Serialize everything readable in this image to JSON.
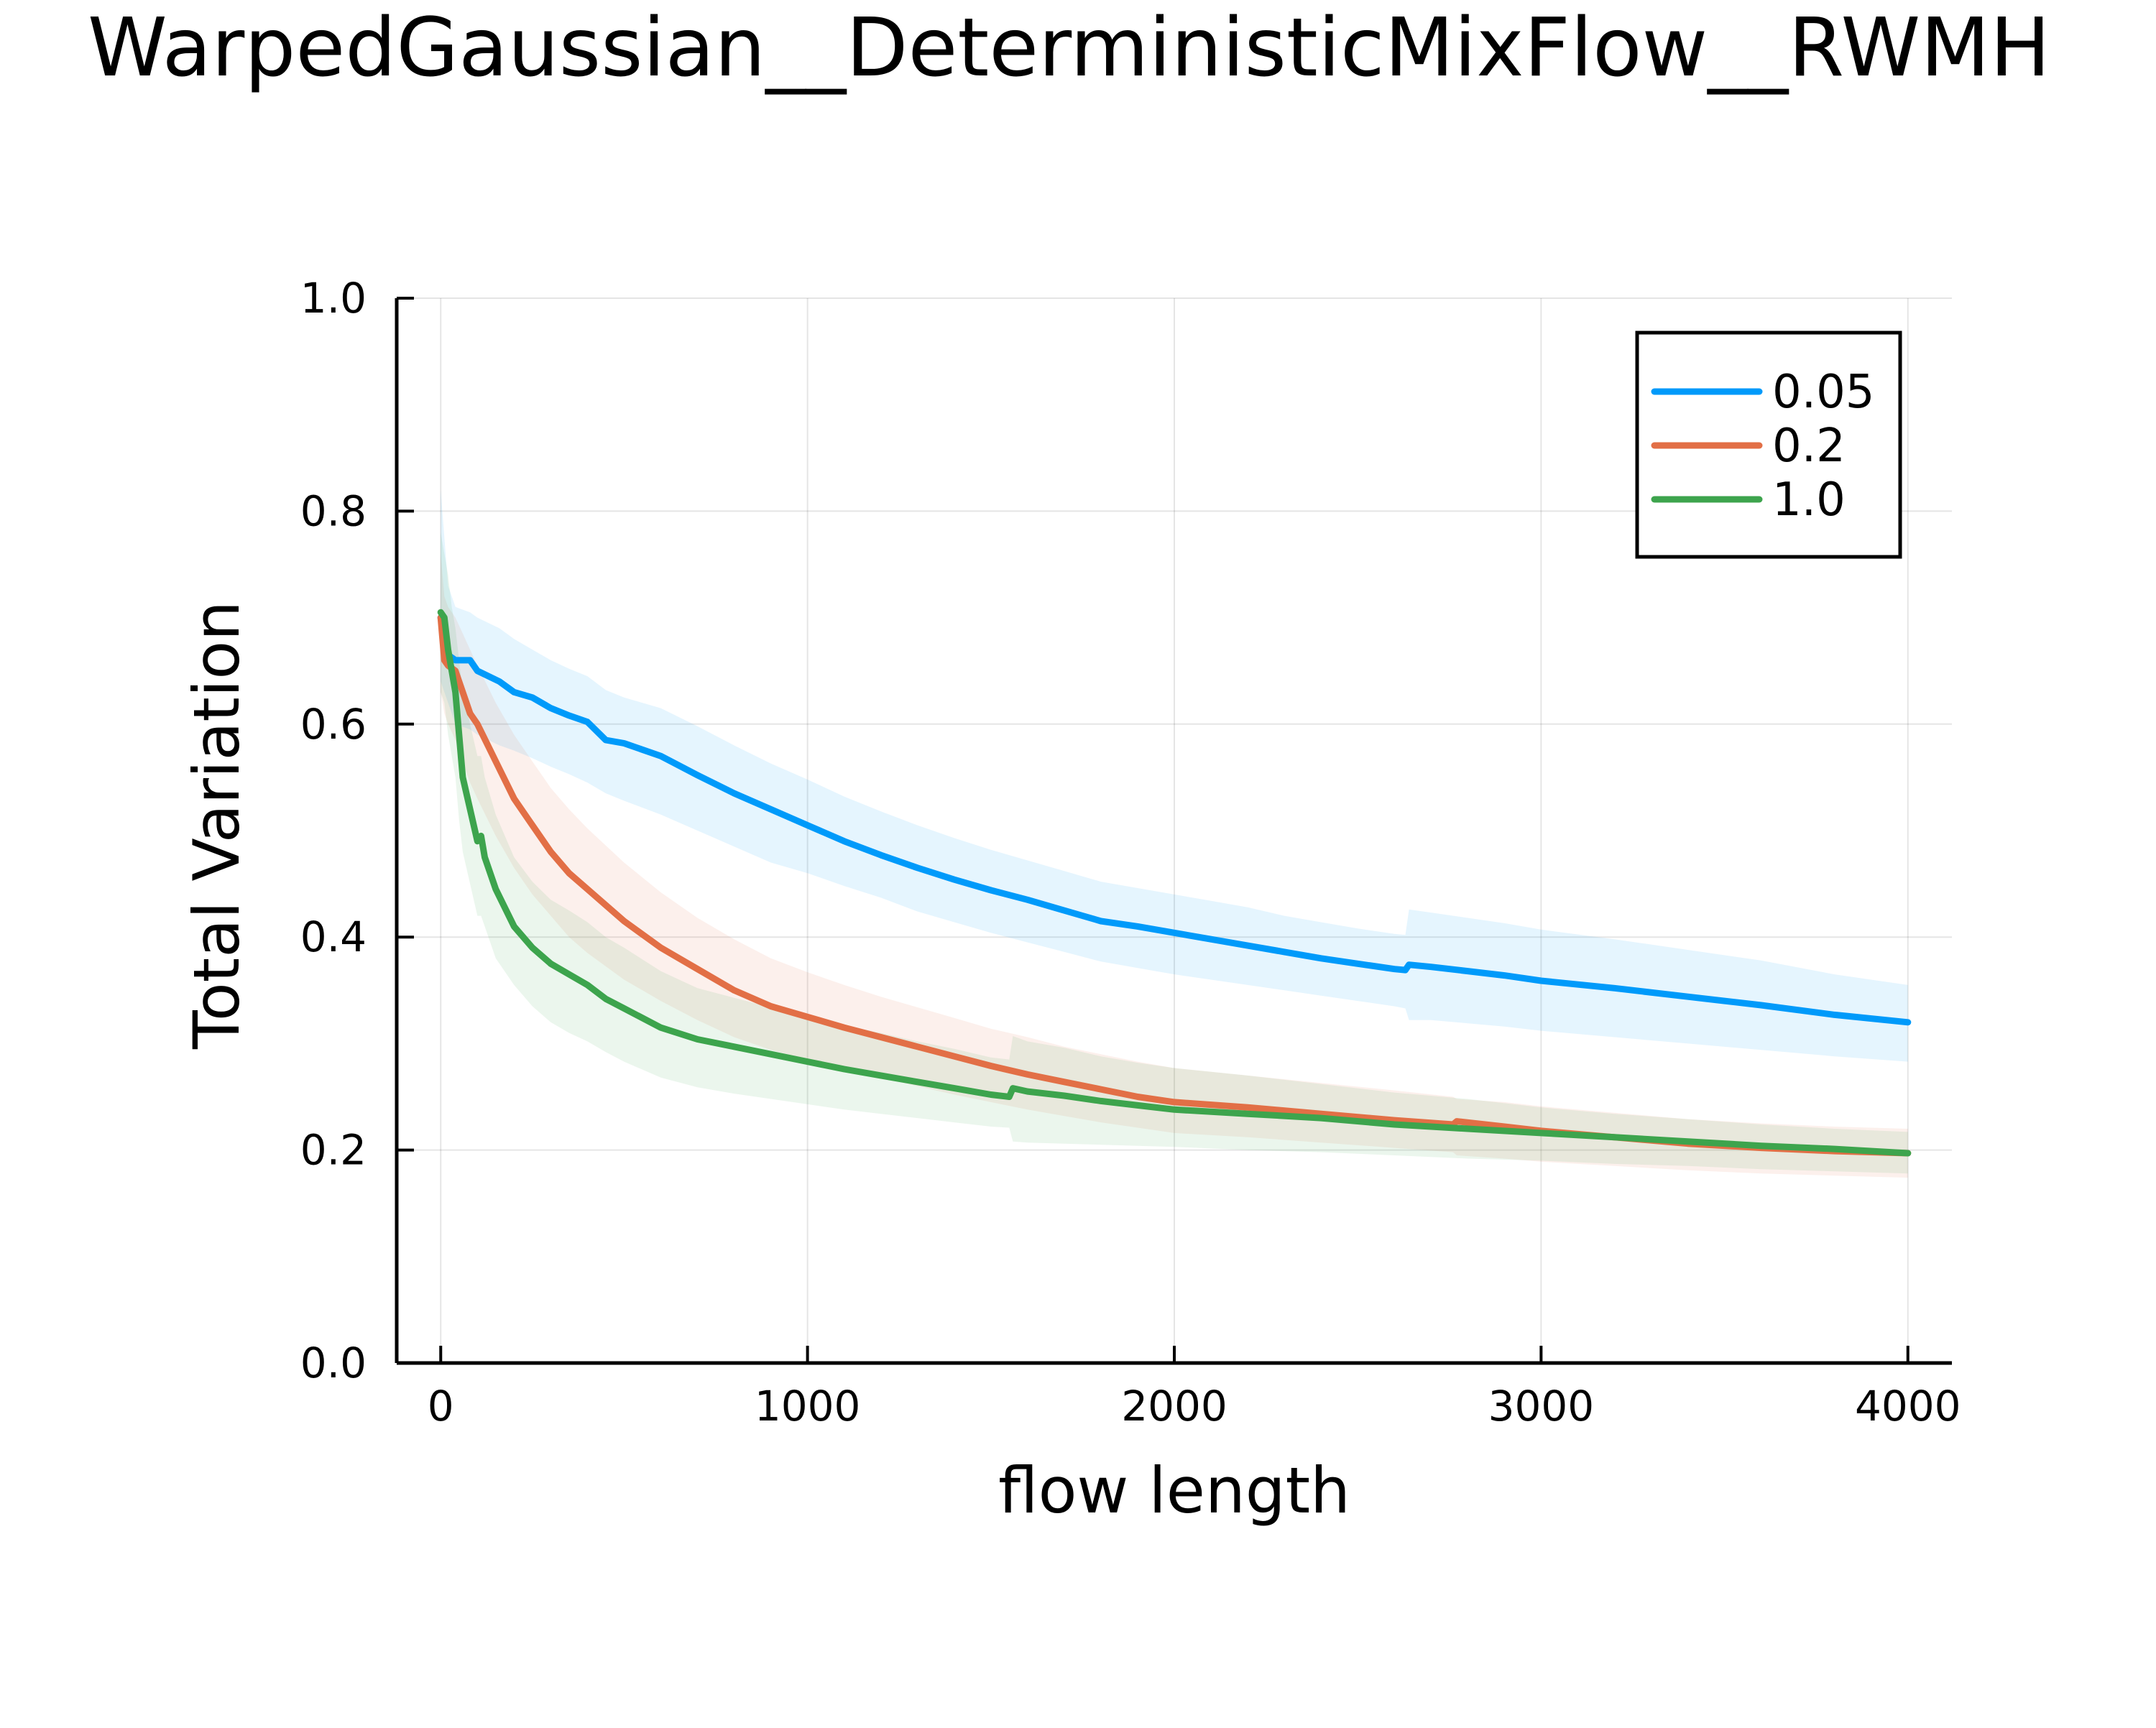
{
  "chart_data": {
    "type": "line",
    "title": "WarpedGaussian__DeterministicMixFlow__RWMH",
    "xlabel": "flow length",
    "ylabel": "Total Variation",
    "xlim": [
      -120,
      4120
    ],
    "ylim": [
      0.0,
      1.0
    ],
    "x_ticks": [
      0,
      1000,
      2000,
      3000,
      4000
    ],
    "x_tick_labels": [
      "0",
      "1000",
      "2000",
      "3000",
      "4000"
    ],
    "y_ticks": [
      0.0,
      0.2,
      0.4,
      0.6,
      0.8,
      1.0
    ],
    "y_tick_labels": [
      "0.0",
      "0.2",
      "0.4",
      "0.6",
      "0.8",
      "1.0"
    ],
    "grid": true,
    "legend_position": "top-right",
    "series": [
      {
        "name": "0.05",
        "color": "#009AFA",
        "x": [
          0,
          20,
          40,
          80,
          100,
          160,
          200,
          250,
          300,
          350,
          400,
          450,
          500,
          600,
          700,
          800,
          900,
          1000,
          1100,
          1200,
          1300,
          1400,
          1500,
          1600,
          1700,
          1800,
          1900,
          2000,
          2100,
          2200,
          2300,
          2400,
          2500,
          2600,
          2630,
          2640,
          2700,
          2800,
          2900,
          3000,
          3200,
          3400,
          3600,
          3800,
          4000
        ],
        "y": [
          0.7,
          0.665,
          0.66,
          0.66,
          0.65,
          0.64,
          0.63,
          0.625,
          0.615,
          0.608,
          0.602,
          0.585,
          0.582,
          0.57,
          0.552,
          0.535,
          0.52,
          0.505,
          0.49,
          0.477,
          0.465,
          0.454,
          0.444,
          0.435,
          0.425,
          0.415,
          0.41,
          0.404,
          0.398,
          0.392,
          0.386,
          0.38,
          0.375,
          0.37,
          0.369,
          0.374,
          0.372,
          0.368,
          0.364,
          0.359,
          0.352,
          0.344,
          0.336,
          0.327,
          0.32
        ],
        "lower": [
          0.64,
          0.62,
          0.6,
          0.595,
          0.59,
          0.58,
          0.575,
          0.568,
          0.56,
          0.553,
          0.545,
          0.535,
          0.528,
          0.515,
          0.5,
          0.485,
          0.47,
          0.46,
          0.448,
          0.437,
          0.424,
          0.414,
          0.404,
          0.395,
          0.386,
          0.377,
          0.371,
          0.365,
          0.36,
          0.355,
          0.35,
          0.345,
          0.34,
          0.335,
          0.333,
          0.322,
          0.322,
          0.319,
          0.316,
          0.312,
          0.306,
          0.3,
          0.294,
          0.288,
          0.283
        ],
        "upper": [
          0.82,
          0.73,
          0.71,
          0.705,
          0.7,
          0.69,
          0.68,
          0.67,
          0.66,
          0.652,
          0.645,
          0.632,
          0.625,
          0.615,
          0.598,
          0.58,
          0.563,
          0.548,
          0.532,
          0.518,
          0.505,
          0.493,
          0.482,
          0.472,
          0.462,
          0.452,
          0.446,
          0.44,
          0.434,
          0.428,
          0.42,
          0.414,
          0.408,
          0.403,
          0.402,
          0.426,
          0.423,
          0.418,
          0.413,
          0.407,
          0.398,
          0.388,
          0.378,
          0.365,
          0.355
        ]
      },
      {
        "name": "0.2",
        "color": "#E26F46",
        "x": [
          0,
          10,
          20,
          40,
          60,
          80,
          100,
          150,
          200,
          250,
          300,
          350,
          400,
          500,
          600,
          700,
          800,
          900,
          1000,
          1100,
          1200,
          1300,
          1400,
          1500,
          1600,
          1700,
          1800,
          1900,
          2000,
          2200,
          2400,
          2600,
          2760,
          2770,
          2900,
          3000,
          3200,
          3400,
          3600,
          3800,
          4000
        ],
        "y": [
          0.7,
          0.66,
          0.655,
          0.65,
          0.63,
          0.61,
          0.6,
          0.565,
          0.53,
          0.505,
          0.48,
          0.46,
          0.445,
          0.415,
          0.39,
          0.37,
          0.35,
          0.335,
          0.325,
          0.315,
          0.306,
          0.297,
          0.288,
          0.279,
          0.271,
          0.264,
          0.257,
          0.25,
          0.245,
          0.24,
          0.234,
          0.228,
          0.224,
          0.227,
          0.222,
          0.218,
          0.212,
          0.206,
          0.202,
          0.199,
          0.197
        ],
        "lower": [
          0.63,
          0.61,
          0.6,
          0.585,
          0.565,
          0.545,
          0.53,
          0.495,
          0.465,
          0.44,
          0.42,
          0.4,
          0.385,
          0.36,
          0.34,
          0.322,
          0.306,
          0.294,
          0.285,
          0.276,
          0.268,
          0.26,
          0.252,
          0.245,
          0.238,
          0.232,
          0.226,
          0.221,
          0.216,
          0.212,
          0.207,
          0.202,
          0.198,
          0.195,
          0.192,
          0.189,
          0.185,
          0.181,
          0.178,
          0.176,
          0.174
        ],
        "upper": [
          0.76,
          0.72,
          0.71,
          0.7,
          0.685,
          0.67,
          0.655,
          0.62,
          0.59,
          0.565,
          0.54,
          0.52,
          0.502,
          0.47,
          0.442,
          0.418,
          0.398,
          0.38,
          0.367,
          0.355,
          0.344,
          0.334,
          0.324,
          0.314,
          0.306,
          0.297,
          0.29,
          0.283,
          0.277,
          0.27,
          0.263,
          0.256,
          0.25,
          0.248,
          0.245,
          0.241,
          0.235,
          0.229,
          0.225,
          0.222,
          0.22
        ]
      },
      {
        "name": "1.0",
        "color": "#3DA44D",
        "x": [
          0,
          10,
          20,
          30,
          40,
          50,
          60,
          80,
          100,
          110,
          120,
          150,
          200,
          250,
          300,
          350,
          400,
          450,
          500,
          600,
          700,
          800,
          900,
          1000,
          1100,
          1200,
          1300,
          1400,
          1500,
          1550,
          1560,
          1600,
          1700,
          1800,
          1900,
          2000,
          2200,
          2400,
          2600,
          2800,
          3000,
          3200,
          3400,
          3600,
          3800,
          4000
        ],
        "y": [
          0.705,
          0.7,
          0.67,
          0.65,
          0.63,
          0.59,
          0.55,
          0.52,
          0.49,
          0.495,
          0.475,
          0.445,
          0.41,
          0.39,
          0.375,
          0.365,
          0.355,
          0.342,
          0.333,
          0.315,
          0.304,
          0.297,
          0.29,
          0.283,
          0.276,
          0.27,
          0.264,
          0.258,
          0.252,
          0.25,
          0.258,
          0.255,
          0.251,
          0.246,
          0.242,
          0.238,
          0.234,
          0.23,
          0.224,
          0.22,
          0.216,
          0.212,
          0.208,
          0.204,
          0.201,
          0.197
        ],
        "lower": [
          0.63,
          0.62,
          0.59,
          0.57,
          0.55,
          0.51,
          0.48,
          0.45,
          0.42,
          0.42,
          0.41,
          0.38,
          0.355,
          0.335,
          0.32,
          0.31,
          0.302,
          0.292,
          0.283,
          0.268,
          0.259,
          0.253,
          0.248,
          0.243,
          0.238,
          0.234,
          0.23,
          0.226,
          0.222,
          0.221,
          0.208,
          0.207,
          0.206,
          0.205,
          0.204,
          0.203,
          0.2,
          0.198,
          0.195,
          0.192,
          0.19,
          0.187,
          0.185,
          0.182,
          0.18,
          0.178
        ],
        "upper": [
          0.78,
          0.76,
          0.74,
          0.71,
          0.69,
          0.66,
          0.63,
          0.6,
          0.57,
          0.57,
          0.55,
          0.515,
          0.475,
          0.452,
          0.435,
          0.425,
          0.414,
          0.4,
          0.39,
          0.368,
          0.352,
          0.343,
          0.334,
          0.325,
          0.317,
          0.31,
          0.302,
          0.295,
          0.287,
          0.285,
          0.307,
          0.302,
          0.296,
          0.288,
          0.282,
          0.277,
          0.27,
          0.262,
          0.254,
          0.248,
          0.24,
          0.234,
          0.229,
          0.224,
          0.22,
          0.217
        ]
      }
    ]
  }
}
